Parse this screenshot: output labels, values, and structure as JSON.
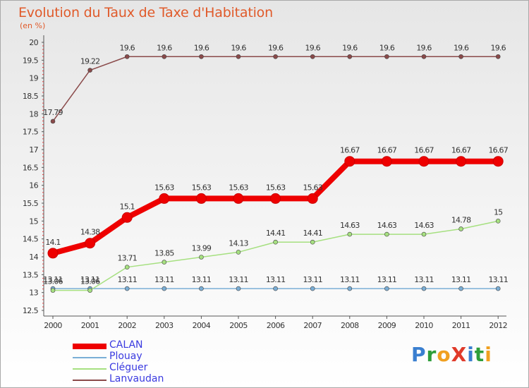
{
  "title": "Evolution du Taux de Taxe d'Habitation",
  "unit_label": "(en %)",
  "logo": {
    "text": "ProXiti",
    "letters": [
      {
        "ch": "P",
        "color": "#3a7fd0"
      },
      {
        "ch": "r",
        "color": "#2e9e3a"
      },
      {
        "ch": "o",
        "color": "#f0a020"
      },
      {
        "ch": "X",
        "color": "#e03a2a"
      },
      {
        "ch": "i",
        "color": "#3a7fd0"
      },
      {
        "ch": "t",
        "color": "#2e9e3a"
      },
      {
        "ch": "i",
        "color": "#f0a020"
      }
    ]
  },
  "chart_data": {
    "type": "line",
    "title": "Evolution du Taux de Taxe d'Habitation",
    "ylabel": "(en %)",
    "xlabel": "",
    "x": [
      "2000",
      "2001",
      "2002",
      "2003",
      "2004",
      "2005",
      "2006",
      "2007",
      "2008",
      "2009",
      "2010",
      "2011",
      "2012"
    ],
    "ylim": [
      12.5,
      20
    ],
    "yticks": [
      "12.5",
      "13",
      "13.5",
      "14",
      "14.5",
      "15",
      "15.5",
      "16",
      "16.5",
      "17",
      "17.5",
      "18",
      "18.5",
      "19",
      "19.5",
      "20"
    ],
    "grid": false,
    "legend_position": "bottom-left",
    "series": [
      {
        "name": "CALAN",
        "color": "#ee0000",
        "width": 8,
        "marker": 7,
        "values": [
          14.1,
          14.38,
          15.1,
          15.63,
          15.63,
          15.63,
          15.63,
          15.63,
          16.67,
          16.67,
          16.67,
          16.67,
          16.67
        ],
        "labels": [
          "14.1",
          "14.38",
          "15.1",
          "15.63",
          "15.63",
          "15.63",
          "15.63",
          "15.63",
          "16.67",
          "16.67",
          "16.67",
          "16.67",
          "16.67"
        ]
      },
      {
        "name": "Plouay",
        "color": "#7aaed6",
        "width": 1.5,
        "marker": 3,
        "values": [
          13.11,
          13.11,
          13.11,
          13.11,
          13.11,
          13.11,
          13.11,
          13.11,
          13.11,
          13.11,
          13.11,
          13.11,
          13.11
        ],
        "labels": [
          "13.11",
          "13.11",
          "13.11",
          "13.11",
          "13.11",
          "13.11",
          "13.11",
          "13.11",
          "13.11",
          "13.11",
          "13.11",
          "13.11",
          "13.11"
        ]
      },
      {
        "name": "Cléguer",
        "color": "#a6e080",
        "width": 1.5,
        "marker": 3,
        "values": [
          13.06,
          13.06,
          13.71,
          13.85,
          13.99,
          14.13,
          14.41,
          14.41,
          14.63,
          14.63,
          14.63,
          14.78,
          15
        ],
        "labels": [
          "13.06",
          "13.06",
          "13.71",
          "13.85",
          "13.99",
          "14.13",
          "14.41",
          "14.41",
          "14.63",
          "14.63",
          "14.63",
          "14.78",
          "15"
        ]
      },
      {
        "name": "Lanvaudan",
        "color": "#8a4a4a",
        "width": 1.5,
        "marker": 3,
        "values": [
          17.79,
          19.22,
          19.6,
          19.6,
          19.6,
          19.6,
          19.6,
          19.6,
          19.6,
          19.6,
          19.6,
          19.6,
          19.6
        ],
        "labels": [
          "17.79",
          "19.22",
          "19.6",
          "19.6",
          "19.6",
          "19.6",
          "19.6",
          "19.6",
          "19.6",
          "19.6",
          "19.6",
          "19.6",
          "19.6"
        ]
      }
    ]
  }
}
